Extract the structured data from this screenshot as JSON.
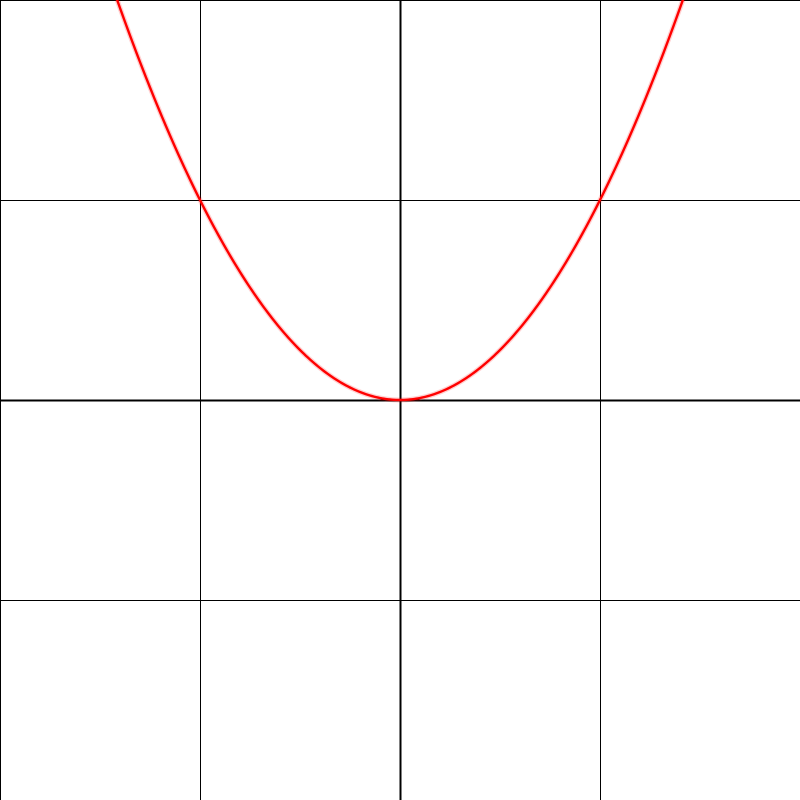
{
  "chart_data": {
    "type": "line",
    "title": "",
    "xlabel": "",
    "ylabel": "",
    "xlim": [
      -2,
      2
    ],
    "ylim": [
      -2,
      2
    ],
    "grid": true,
    "grid_step": 1,
    "axes_through_origin": true,
    "series": [
      {
        "function": "y = x^2",
        "x": [
          -1.42,
          -1.2,
          -1.0,
          -0.8,
          -0.6,
          -0.4,
          -0.2,
          0.0,
          0.2,
          0.4,
          0.6,
          0.8,
          1.0,
          1.2,
          1.42
        ],
        "y": [
          2.0,
          1.44,
          1.0,
          0.64,
          0.36,
          0.16,
          0.04,
          0.0,
          0.04,
          0.16,
          0.36,
          0.64,
          1.0,
          1.44,
          2.0
        ],
        "color": "#ff0000"
      }
    ]
  },
  "colors": {
    "background": "#ffffff",
    "grid": "#000000",
    "axes": "#000000",
    "curve": "#ff0000"
  }
}
